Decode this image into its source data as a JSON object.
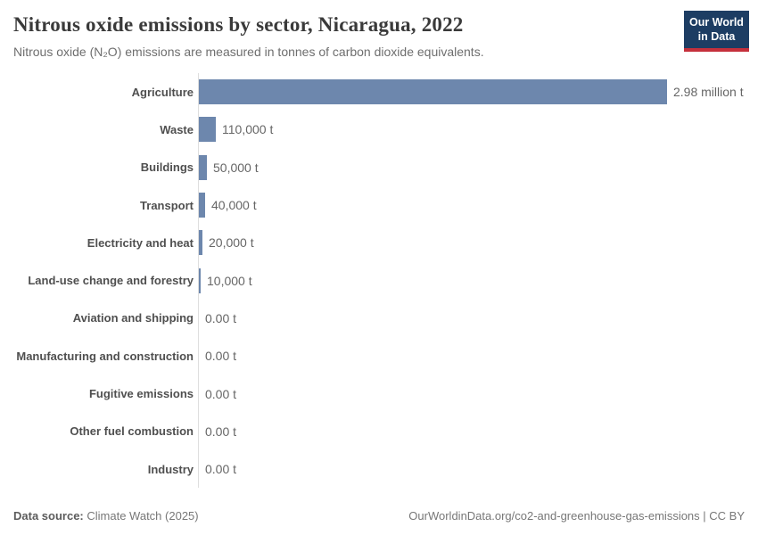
{
  "header": {
    "title": "Nitrous oxide emissions by sector, Nicaragua, 2022",
    "subtitle": "Nitrous oxide (N₂O) emissions are measured in tonnes of carbon dioxide equivalents.",
    "logo": {
      "line1": "Our World",
      "line2": "in Data",
      "bg_color": "#1d3d63",
      "stripe_color": "#c5303c"
    }
  },
  "chart_data": {
    "type": "bar",
    "orientation": "horizontal",
    "title": "Nitrous oxide emissions by sector, Nicaragua, 2022",
    "subtitle": "Nitrous oxide (N₂O) emissions are measured in tonnes of carbon dioxide equivalents.",
    "unit": "tonnes of CO₂ equivalents",
    "categories": [
      "Agriculture",
      "Waste",
      "Buildings",
      "Transport",
      "Electricity and heat",
      "Land-use change and forestry",
      "Aviation and shipping",
      "Manufacturing and construction",
      "Fugitive emissions",
      "Other fuel combustion",
      "Industry"
    ],
    "values": [
      2980000,
      110000,
      50000,
      40000,
      20000,
      10000,
      0,
      0,
      0,
      0,
      0
    ],
    "value_labels": [
      "2.98 million t",
      "110,000 t",
      "50,000 t",
      "40,000 t",
      "20,000 t",
      "10,000 t",
      "0.00 t",
      "0.00 t",
      "0.00 t",
      "0.00 t",
      "0.00 t"
    ],
    "xlim": [
      0,
      2980000
    ],
    "grid": false,
    "legend": "none",
    "bar_color": "#6d87ad",
    "axis_color": "#dedede"
  },
  "footer": {
    "source_label": "Data source:",
    "source_value": "Climate Watch (2025)",
    "attribution": "OurWorldinData.org/co2-and-greenhouse-gas-emissions | CC BY"
  },
  "colors": {
    "bar": "#6d87ad",
    "axis": "#dedede",
    "title": "#3a3a3a",
    "subtitle": "#6e6e6e",
    "logo_bg": "#1d3d63",
    "logo_stripe": "#c5303c"
  }
}
